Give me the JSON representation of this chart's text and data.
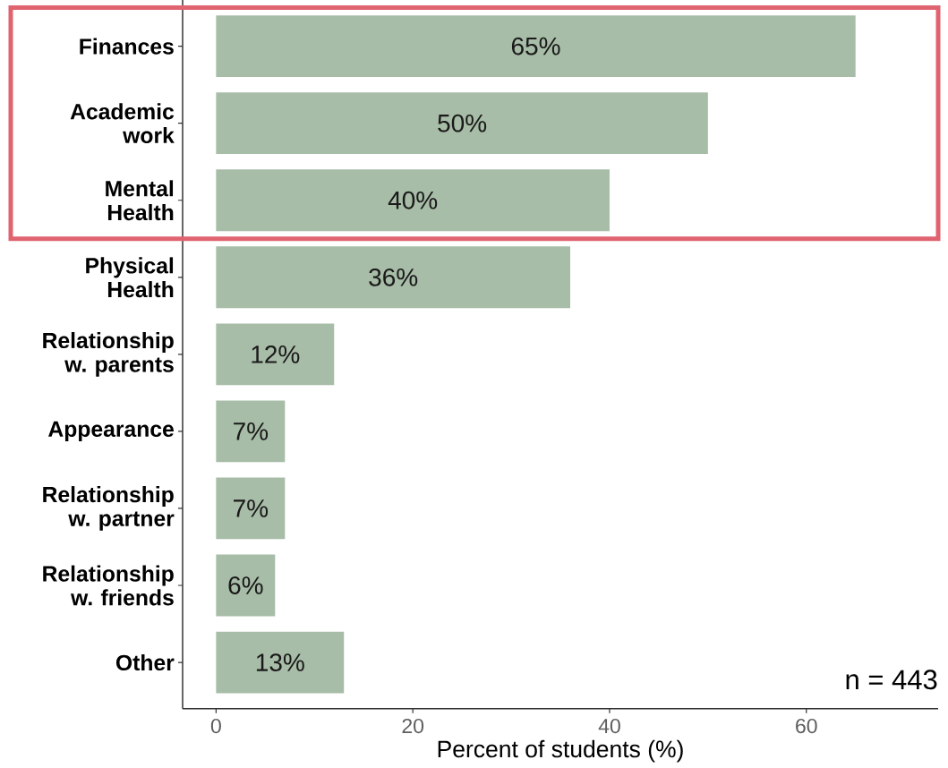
{
  "chart_data": {
    "type": "bar",
    "orientation": "horizontal",
    "xlabel": "Percent of students (%)",
    "categories": [
      "Finances",
      "Academic work",
      "Mental Health",
      "Physical Health",
      "Relationship w. parents",
      "Appearance",
      "Relationship w. partner",
      "Relationship w. friends",
      "Other"
    ],
    "values": [
      65,
      50,
      40,
      36,
      12,
      7,
      7,
      6,
      13
    ],
    "value_labels": [
      "65%",
      "50%",
      "40%",
      "36%",
      "12%",
      "7%",
      "7%",
      "6%",
      "13%"
    ],
    "color": "#a8bda8",
    "xlim": [
      -3.4,
      73.4
    ],
    "xticks": [
      0,
      20,
      40,
      60
    ],
    "annotations": [
      "n = 443"
    ]
  }
}
